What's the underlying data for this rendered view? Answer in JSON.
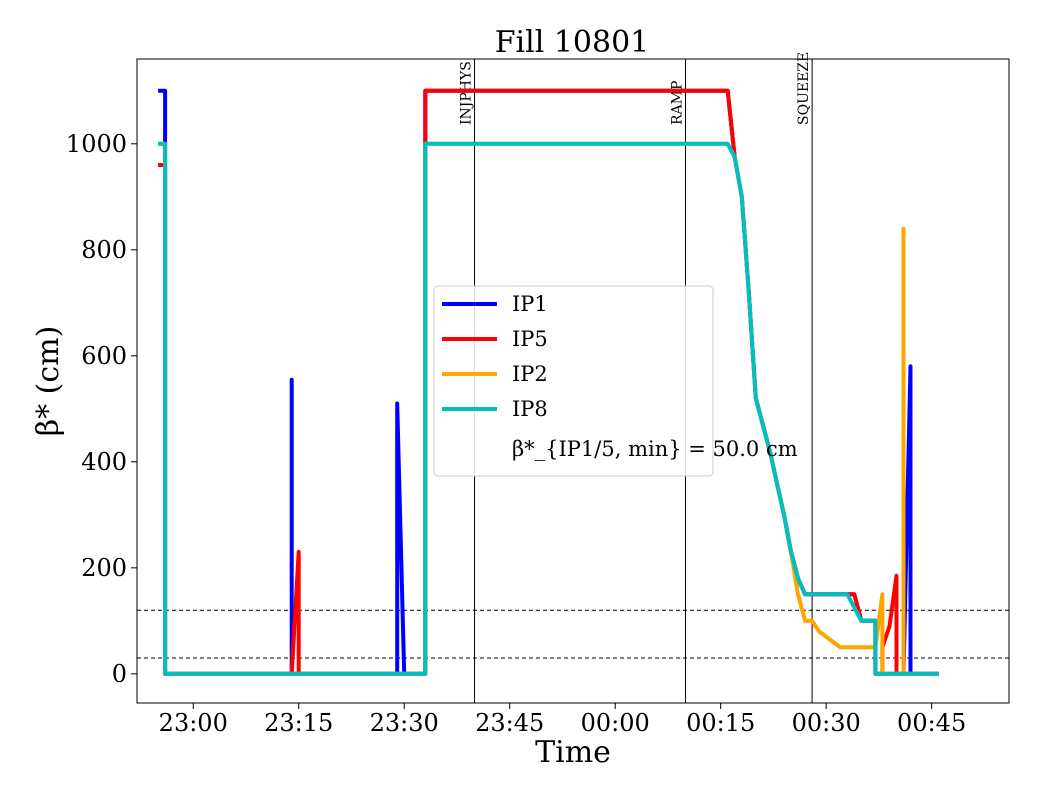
{
  "chart_data": {
    "type": "line",
    "title": "Fill 10801",
    "xlabel": "Time",
    "ylabel": "β* (cm)",
    "x_ticks": [
      "23:00",
      "23:15",
      "23:30",
      "23:45",
      "00:00",
      "00:15",
      "00:30",
      "00:45"
    ],
    "y_ticks": [
      "0",
      "200",
      "400",
      "600",
      "800",
      "1000"
    ],
    "xlim": [
      "22:52",
      "00:56"
    ],
    "ylim": [
      -55,
      1160
    ],
    "grid": false,
    "legend_placement": "center",
    "legend_extra": "β*_{IP1/5, min} = 50.0 cm",
    "hlines": [
      30,
      120
    ],
    "events": [
      {
        "label": "INJPHYS",
        "time": "23:40"
      },
      {
        "label": "RAMP",
        "time": "00:10"
      },
      {
        "label": "SQUEEZE",
        "time": "00:28"
      }
    ],
    "series": [
      {
        "name": "IP1",
        "color": "#0000ff",
        "points": [
          [
            "22:55",
            1100
          ],
          [
            "22:56",
            1100
          ],
          [
            "22:56",
            0
          ],
          [
            "23:14",
            0
          ],
          [
            "23:14",
            555
          ],
          [
            "23:14",
            0
          ],
          [
            "23:29",
            0
          ],
          [
            "23:29",
            510
          ],
          [
            "23:30",
            0
          ],
          [
            "23:33",
            0
          ],
          [
            "23:33",
            1100
          ],
          [
            "00:16",
            1100
          ],
          [
            "00:17",
            975
          ],
          [
            "00:18",
            900
          ],
          [
            "00:19",
            720
          ],
          [
            "00:20",
            520
          ],
          [
            "00:22",
            420
          ],
          [
            "00:23",
            360
          ],
          [
            "00:24",
            300
          ],
          [
            "00:25",
            230
          ],
          [
            "00:26",
            180
          ],
          [
            "00:27",
            150
          ],
          [
            "00:32",
            150
          ],
          [
            "00:34",
            150
          ],
          [
            "00:35",
            100
          ],
          [
            "00:37",
            100
          ],
          [
            "00:37",
            0
          ],
          [
            "00:39",
            0
          ],
          [
            "00:41",
            0
          ],
          [
            "00:42",
            580
          ],
          [
            "00:42",
            0
          ],
          [
            "00:46",
            0
          ]
        ]
      },
      {
        "name": "IP5",
        "color": "#ff0000",
        "points": [
          [
            "22:55",
            960
          ],
          [
            "22:56",
            960
          ],
          [
            "22:56",
            0
          ],
          [
            "23:14",
            0
          ],
          [
            "23:15",
            230
          ],
          [
            "23:15",
            0
          ],
          [
            "23:33",
            0
          ],
          [
            "23:33",
            1100
          ],
          [
            "00:16",
            1100
          ],
          [
            "00:17",
            975
          ],
          [
            "00:18",
            900
          ],
          [
            "00:19",
            720
          ],
          [
            "00:20",
            520
          ],
          [
            "00:22",
            420
          ],
          [
            "00:23",
            360
          ],
          [
            "00:24",
            300
          ],
          [
            "00:25",
            230
          ],
          [
            "00:26",
            180
          ],
          [
            "00:27",
            150
          ],
          [
            "00:32",
            150
          ],
          [
            "00:34",
            150
          ],
          [
            "00:35",
            100
          ],
          [
            "00:37",
            100
          ],
          [
            "00:37",
            0
          ],
          [
            "00:38",
            0
          ],
          [
            "00:38",
            50
          ],
          [
            "00:39",
            90
          ],
          [
            "00:40",
            185
          ],
          [
            "00:40",
            0
          ],
          [
            "00:46",
            0
          ]
        ]
      },
      {
        "name": "IP2",
        "color": "#ffa500",
        "points": [
          [
            "22:55",
            1000
          ],
          [
            "22:56",
            1000
          ],
          [
            "22:56",
            0
          ],
          [
            "23:33",
            0
          ],
          [
            "23:33",
            1000
          ],
          [
            "00:16",
            1000
          ],
          [
            "00:17",
            975
          ],
          [
            "00:18",
            900
          ],
          [
            "00:19",
            720
          ],
          [
            "00:20",
            520
          ],
          [
            "00:22",
            420
          ],
          [
            "00:23",
            360
          ],
          [
            "00:24",
            300
          ],
          [
            "00:25",
            230
          ],
          [
            "00:26",
            150
          ],
          [
            "00:27",
            100
          ],
          [
            "00:28",
            100
          ],
          [
            "00:29",
            80
          ],
          [
            "00:31",
            60
          ],
          [
            "00:32",
            50
          ],
          [
            "00:35",
            50
          ],
          [
            "00:37",
            50
          ],
          [
            "00:38",
            150
          ],
          [
            "00:38",
            0
          ],
          [
            "00:41",
            0
          ],
          [
            "00:41",
            840
          ],
          [
            "00:41",
            0
          ],
          [
            "00:46",
            0
          ]
        ]
      },
      {
        "name": "IP8",
        "color": "#00bfbf",
        "points": [
          [
            "22:55",
            1000
          ],
          [
            "22:56",
            1000
          ],
          [
            "22:56",
            0
          ],
          [
            "23:33",
            0
          ],
          [
            "23:33",
            1000
          ],
          [
            "00:16",
            1000
          ],
          [
            "00:17",
            975
          ],
          [
            "00:18",
            900
          ],
          [
            "00:19",
            720
          ],
          [
            "00:20",
            520
          ],
          [
            "00:22",
            420
          ],
          [
            "00:23",
            360
          ],
          [
            "00:24",
            300
          ],
          [
            "00:25",
            230
          ],
          [
            "00:26",
            180
          ],
          [
            "00:27",
            150
          ],
          [
            "00:33",
            150
          ],
          [
            "00:35",
            100
          ],
          [
            "00:37",
            100
          ],
          [
            "00:37",
            0
          ],
          [
            "00:46",
            0
          ]
        ]
      }
    ]
  }
}
